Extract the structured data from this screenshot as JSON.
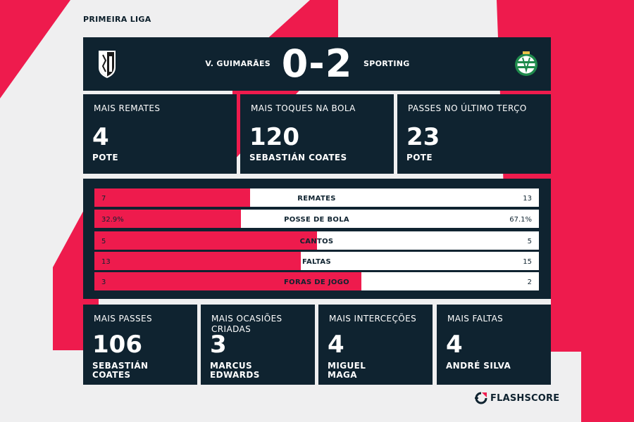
{
  "league": "PRIMEIRA LIGA",
  "match": {
    "home_team": "V. GUIMARÃES",
    "away_team": "SPORTING",
    "score": "0-2",
    "home_crest": "vitoria-guimaraes-crest-icon",
    "away_crest": "sporting-crest-icon"
  },
  "top_cards": [
    {
      "title": "MAIS REMATES",
      "value": "4",
      "player": "POTE"
    },
    {
      "title": "MAIS TOQUES NA BOLA",
      "value": "120",
      "player": "SEBASTIÁN COATES"
    },
    {
      "title": "PASSES NO ÚLTIMO TERÇO",
      "value": "23",
      "player": "POTE"
    }
  ],
  "stats": [
    {
      "label": "REMATES",
      "home": "7",
      "away": "13",
      "home_share": 0.35
    },
    {
      "label": "POSSE DE BOLA",
      "home": "32.9%",
      "away": "67.1%",
      "home_share": 0.329
    },
    {
      "label": "CANTOS",
      "home": "5",
      "away": "5",
      "home_share": 0.5
    },
    {
      "label": "FALTAS",
      "home": "13",
      "away": "15",
      "home_share": 0.464
    },
    {
      "label": "FORAS DE JOGO",
      "home": "3",
      "away": "2",
      "home_share": 0.6
    }
  ],
  "bottom_cards": [
    {
      "title": "MAIS PASSES",
      "value": "106",
      "player": "SEBASTIÁN\nCOATES"
    },
    {
      "title": "MAIS OCASIÕES\nCRIADAS",
      "value": "3",
      "player": "MARCUS\nEDWARDS"
    },
    {
      "title": "MAIS INTERCEÇÕES",
      "value": "4",
      "player": "MIGUEL\nMAGA"
    },
    {
      "title": "MAIS FALTAS",
      "value": "4",
      "player": "ANDRÉ SILVA"
    }
  ],
  "brand": {
    "name": "FLASHSCORE",
    "icon": "flashscore-logo-icon"
  },
  "colors": {
    "accent": "#ee1b4d",
    "panel": "#0f2330",
    "background": "#efeff0"
  }
}
